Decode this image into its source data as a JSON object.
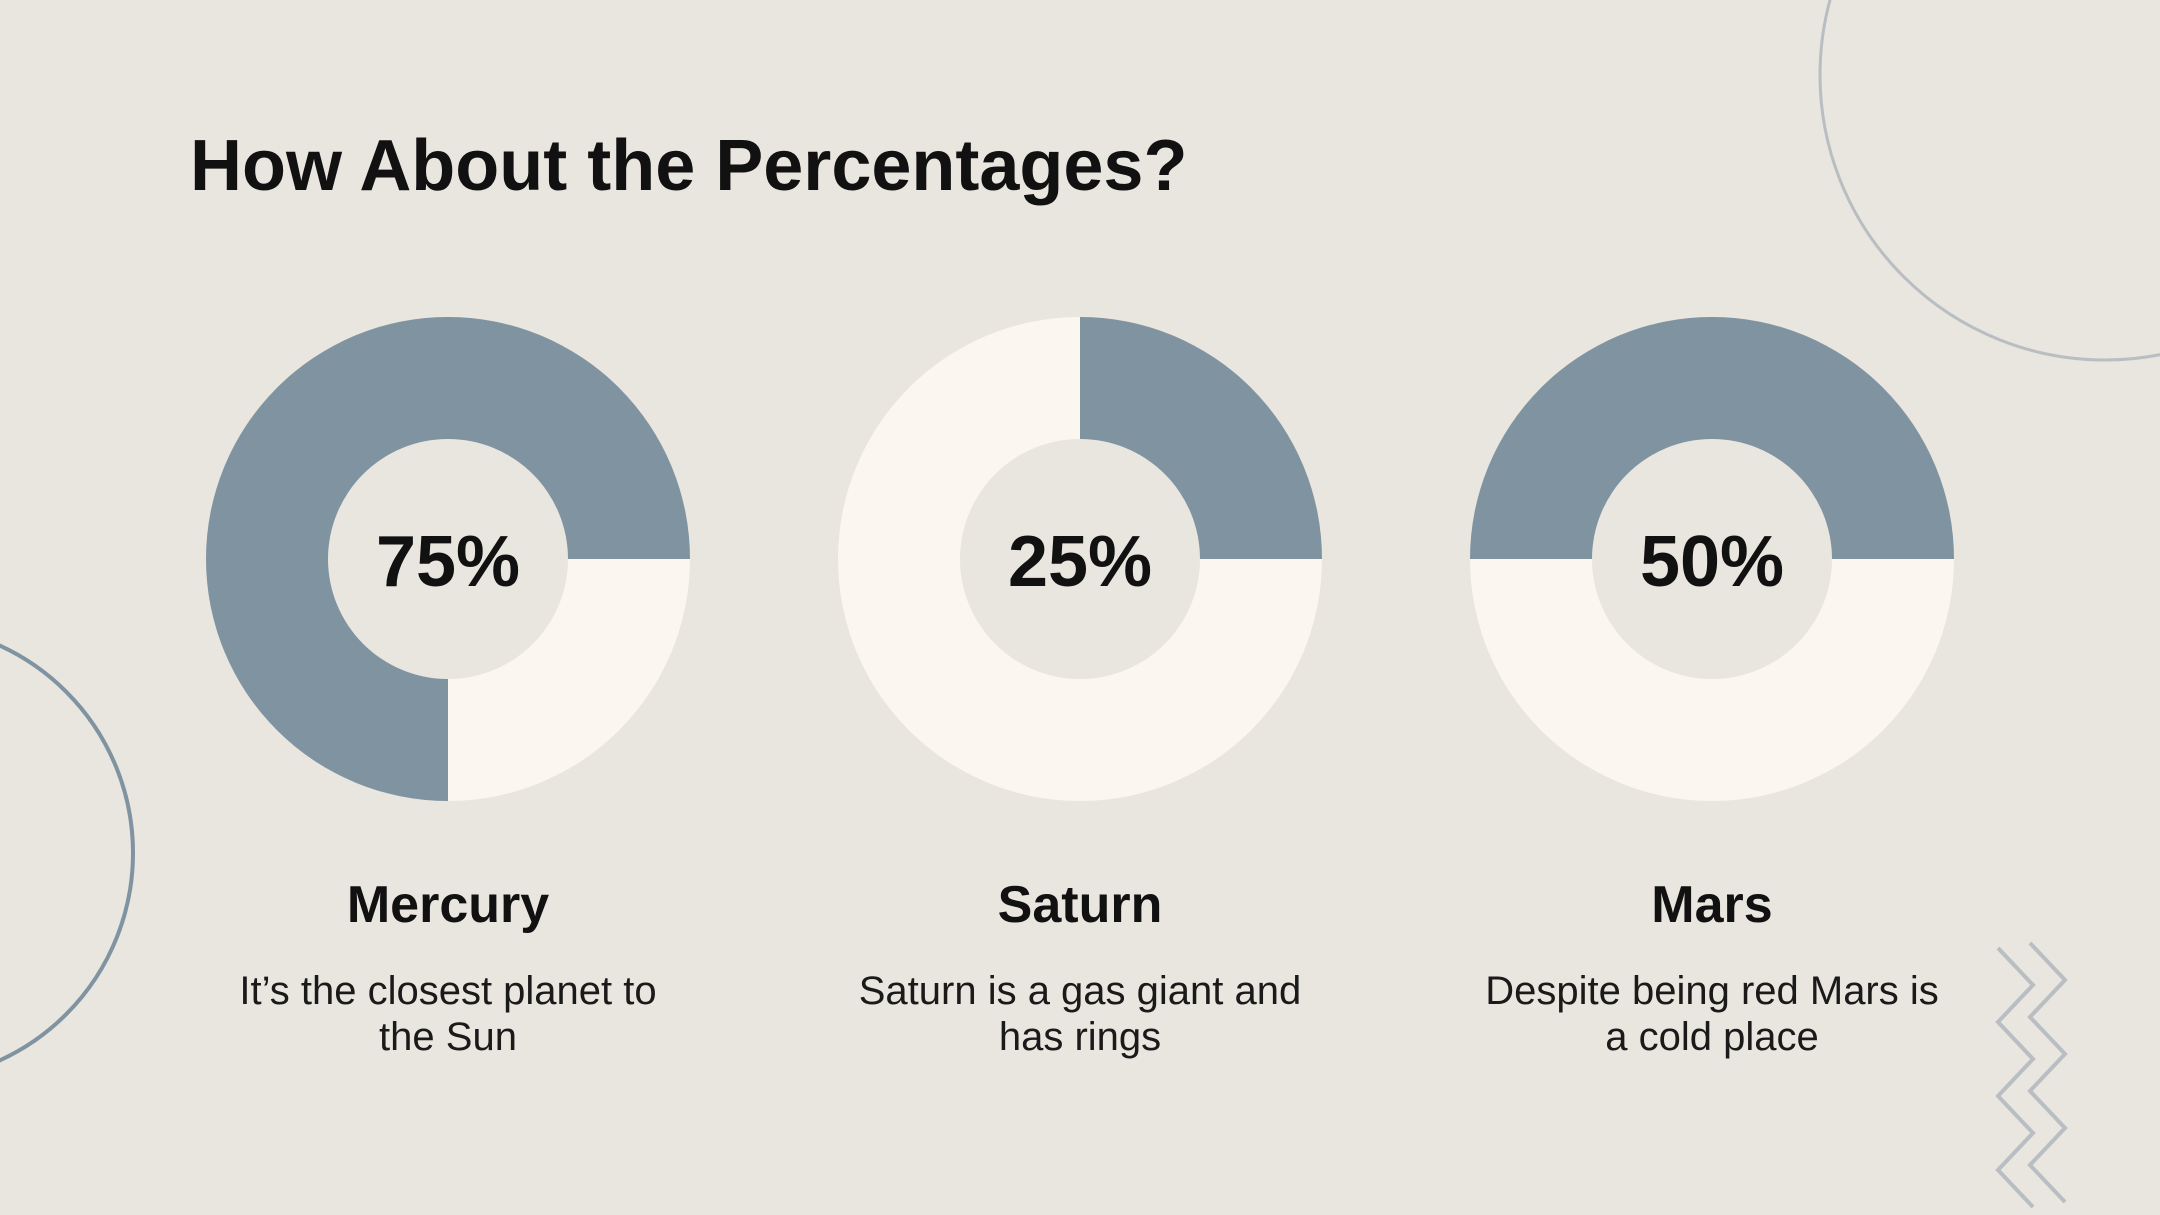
{
  "slide": {
    "title": "How About the Percentages?"
  },
  "colors": {
    "background": "#e9e5df",
    "filled": "#7f93a1",
    "remaining": "#fcf6f1",
    "text": "#111111",
    "decoration_circle": "#b8bec2",
    "decoration_zigzag": "#b8bec2"
  },
  "chart_data": [
    {
      "type": "pie",
      "name": "Mercury",
      "value": 75,
      "label": "75%",
      "description": "It’s the closest planet to the Sun"
    },
    {
      "type": "pie",
      "name": "Saturn",
      "value": 25,
      "label": "25%",
      "description": "Saturn is a gas giant and has rings"
    },
    {
      "type": "pie",
      "name": "Mars",
      "value": 50,
      "label": "50%",
      "description": "Despite being red Mars is a cold place"
    }
  ]
}
